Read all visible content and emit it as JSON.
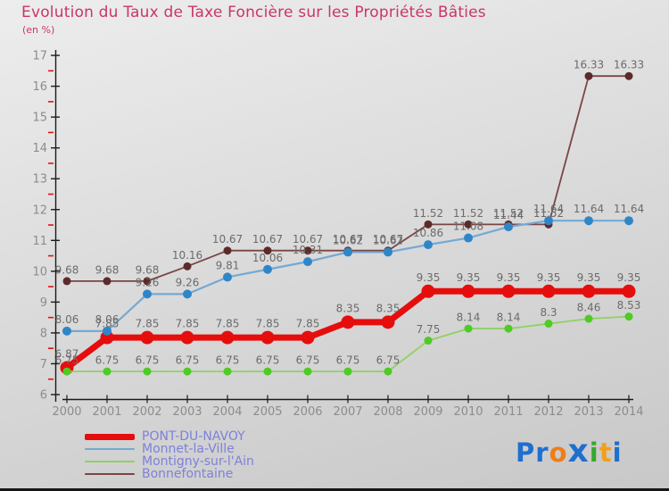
{
  "title": {
    "text": "Evolution du Taux de Taxe Foncière sur les Propriétés Bâties",
    "color": "#cb3566"
  },
  "subtitle": {
    "text": "(en %)",
    "color": "#cb3566"
  },
  "chart_data": {
    "type": "line",
    "x": [
      "2000",
      "2001",
      "2002",
      "2003",
      "2004",
      "2005",
      "2006",
      "2007",
      "2008",
      "2009",
      "2010",
      "2011",
      "2012",
      "2013",
      "2014"
    ],
    "ylim": [
      6,
      17
    ],
    "y_tick_step": 1,
    "y_minor_tick_step": 0.5,
    "grid": false,
    "legend_position": "bottom-left",
    "series": [
      {
        "name": "PONT-DU-NAVOY",
        "values": [
          6.87,
          7.85,
          7.85,
          7.85,
          7.85,
          7.85,
          7.85,
          8.35,
          8.35,
          9.35,
          9.35,
          9.35,
          9.35,
          9.35,
          9.35
        ],
        "line_color": "#e60d0d",
        "dot_color": "#e60d0d",
        "line_width": 7,
        "dot_radius": 7.5
      },
      {
        "name": "Monnet-la-Ville",
        "values": [
          8.06,
          8.06,
          9.26,
          9.26,
          9.81,
          10.06,
          10.31,
          10.62,
          10.62,
          10.86,
          11.08,
          11.44,
          11.64,
          11.64,
          11.64
        ],
        "line_color": "#74a9d4",
        "dot_color": "#2f86c7",
        "line_width": 2.2,
        "dot_radius": 5
      },
      {
        "name": "Montigny-sur-l'Ain",
        "values": [
          6.75,
          6.75,
          6.75,
          6.75,
          6.75,
          6.75,
          6.75,
          6.75,
          6.75,
          7.75,
          8.14,
          8.14,
          8.3,
          8.46,
          8.53
        ],
        "line_color": "#8ed163",
        "dot_color": "#4ecb24",
        "line_width": 1.8,
        "dot_radius": 4.5
      },
      {
        "name": "Bonnefontaine",
        "values": [
          9.68,
          9.68,
          9.68,
          10.16,
          10.67,
          10.67,
          10.67,
          10.67,
          10.67,
          11.52,
          11.52,
          11.52,
          11.52,
          16.33,
          16.33
        ],
        "line_color": "#7a4545",
        "dot_color": "#5c2a2a",
        "line_width": 1.8,
        "dot_radius": 4.5
      }
    ],
    "value_label_color": "#6b6b6b",
    "axis_color": "#1a1a1a",
    "tick_label_color": "#8c8c8c",
    "minor_tick_color": "#e01212"
  },
  "legend": {
    "text_color": "#7d81da"
  },
  "logo": {
    "name": "Proxiti",
    "letters": [
      {
        "ch": "P",
        "color": "#1e6fd0",
        "big": false
      },
      {
        "ch": "r",
        "color": "#1e6fd0",
        "big": false
      },
      {
        "ch": "o",
        "color": "#f07d18",
        "big": false
      },
      {
        "ch": "x",
        "color": "#1e6fd0",
        "big": true
      },
      {
        "ch": "i",
        "color": "#35a832",
        "big": false
      },
      {
        "ch": "t",
        "color": "#f0a01c",
        "big": false
      },
      {
        "ch": "i",
        "color": "#1e6fd0",
        "big": false
      }
    ]
  }
}
